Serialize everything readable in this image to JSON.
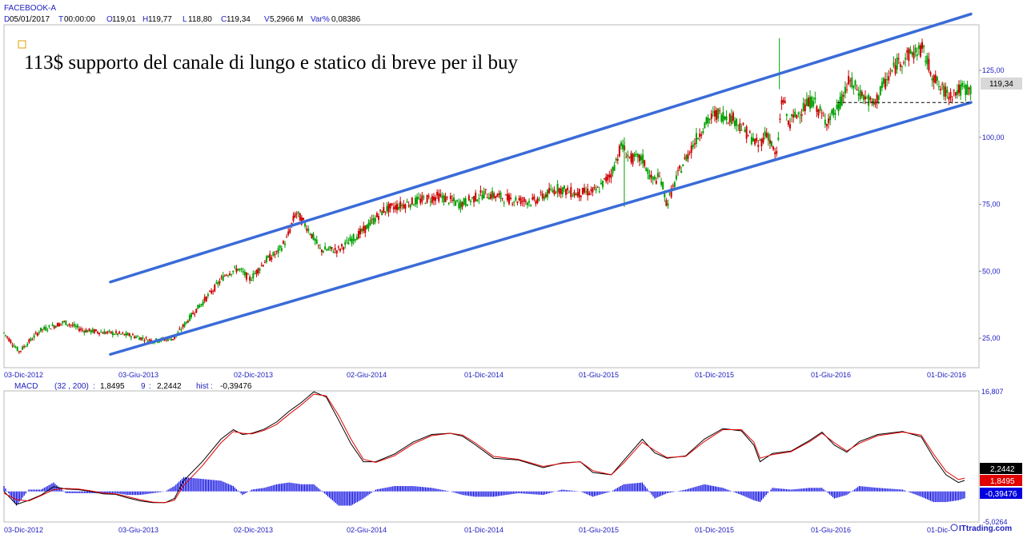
{
  "header": {
    "symbol": "FACEBOOK-A",
    "fields": [
      {
        "k": "D",
        "v": "05/01/2017"
      },
      {
        "k": "T",
        "v": "00:00:00"
      },
      {
        "k": "O",
        "v": "119,01"
      },
      {
        "k": "H",
        "v": "119,77"
      },
      {
        "k": "L",
        "v": "118,80"
      },
      {
        "k": "C",
        "v": "119,34"
      },
      {
        "k": "V",
        "v": "5,2966 M"
      },
      {
        "k": "Var%",
        "v": "0,08386"
      }
    ]
  },
  "annotation": "113$ supporto del canale di lungo e statico di breve per il buy",
  "colors": {
    "channel": "#3a6bd8",
    "bull": "#00a000",
    "bear": "#cc0000",
    "macd": "#000000",
    "signal": "#e00000",
    "hist": "#0000e0",
    "axis_text": "#2020c0",
    "grid": "#c8c8c8"
  },
  "chart_data": [
    {
      "type": "candlestick",
      "title": "FACEBOOK-A",
      "x_tick_labels": [
        "03-Dic-2012",
        "03-Giu-2013",
        "02-Dic-2013",
        "02-Giu-2014",
        "01-Dic-2014",
        "01-Giu-2015",
        "01-Dic-2015",
        "01-Giu-2016",
        "01-Dic-2016"
      ],
      "y_tick_labels": [
        "25,00",
        "50,00",
        "75,00",
        "100,00",
        "125,00"
      ],
      "y_ticks": [
        25,
        50,
        75,
        100,
        125
      ],
      "ylim": [
        14,
        142
      ],
      "last_price_label": "119,34",
      "last_price": 119.34,
      "price_path": [
        {
          "x": 0,
          "y": 27
        },
        {
          "x": 5,
          "y": 20
        },
        {
          "x": 12,
          "y": 28
        },
        {
          "x": 20,
          "y": 31
        },
        {
          "x": 26,
          "y": 28
        },
        {
          "x": 35,
          "y": 27
        },
        {
          "x": 42,
          "y": 26
        },
        {
          "x": 49,
          "y": 24
        },
        {
          "x": 56,
          "y": 25
        },
        {
          "x": 62,
          "y": 34
        },
        {
          "x": 68,
          "y": 42
        },
        {
          "x": 73,
          "y": 49
        },
        {
          "x": 77,
          "y": 51
        },
        {
          "x": 81,
          "y": 47
        },
        {
          "x": 86,
          "y": 54
        },
        {
          "x": 90,
          "y": 57
        },
        {
          "x": 93,
          "y": 62
        },
        {
          "x": 96,
          "y": 72
        },
        {
          "x": 100,
          "y": 66
        },
        {
          "x": 104,
          "y": 58
        },
        {
          "x": 110,
          "y": 58
        },
        {
          "x": 118,
          "y": 65
        },
        {
          "x": 125,
          "y": 73
        },
        {
          "x": 135,
          "y": 76
        },
        {
          "x": 143,
          "y": 78
        },
        {
          "x": 150,
          "y": 75
        },
        {
          "x": 158,
          "y": 79
        },
        {
          "x": 166,
          "y": 77
        },
        {
          "x": 174,
          "y": 76
        },
        {
          "x": 182,
          "y": 81
        },
        {
          "x": 188,
          "y": 79
        },
        {
          "x": 195,
          "y": 80
        },
        {
          "x": 200,
          "y": 87
        },
        {
          "x": 203,
          "y": 97
        },
        {
          "x": 206,
          "y": 92
        },
        {
          "x": 210,
          "y": 92
        },
        {
          "x": 213,
          "y": 84
        },
        {
          "x": 216,
          "y": 85
        },
        {
          "x": 218,
          "y": 75
        },
        {
          "x": 222,
          "y": 87
        },
        {
          "x": 226,
          "y": 96
        },
        {
          "x": 230,
          "y": 104
        },
        {
          "x": 234,
          "y": 109
        },
        {
          "x": 240,
          "y": 107
        },
        {
          "x": 244,
          "y": 102
        },
        {
          "x": 248,
          "y": 97
        },
        {
          "x": 251,
          "y": 102
        },
        {
          "x": 254,
          "y": 92
        },
        {
          "x": 256,
          "y": 116
        },
        {
          "x": 258,
          "y": 105
        },
        {
          "x": 262,
          "y": 110
        },
        {
          "x": 266,
          "y": 114
        },
        {
          "x": 270,
          "y": 106
        },
        {
          "x": 274,
          "y": 110
        },
        {
          "x": 278,
          "y": 121
        },
        {
          "x": 282,
          "y": 116
        },
        {
          "x": 286,
          "y": 112
        },
        {
          "x": 289,
          "y": 119
        },
        {
          "x": 294,
          "y": 128
        },
        {
          "x": 298,
          "y": 131
        },
        {
          "x": 302,
          "y": 133
        },
        {
          "x": 304,
          "y": 127
        },
        {
          "x": 306,
          "y": 122
        },
        {
          "x": 308,
          "y": 118
        },
        {
          "x": 311,
          "y": 116
        },
        {
          "x": 315,
          "y": 118
        },
        {
          "x": 318,
          "y": 118
        }
      ],
      "channel_lines": [
        {
          "from": {
            "x": 35,
            "y": 46
          },
          "to": {
            "x": 318,
            "y": 146
          }
        },
        {
          "from": {
            "x": 35,
            "y": 19
          },
          "to": {
            "x": 318,
            "y": 113
          }
        }
      ],
      "horizontal_level": {
        "y": 113,
        "from_x": 274,
        "to_x": 318,
        "style": "dashed"
      }
    },
    {
      "type": "line",
      "title": "MACD",
      "params": "(32 , 200)",
      "macd_value": "1,8495",
      "signal_period": "9",
      "signal_value": "2,2442",
      "hist_label": "hist",
      "hist_value": "-0,39476",
      "y_top_label": "16,807",
      "y_bottom_label": "-5,0264",
      "ylim": [
        -5.0264,
        16.807
      ],
      "x_tick_labels": [
        "03-Dic-2012",
        "03-Giu-2013",
        "02-Dic-2013",
        "02-Giu-2014",
        "01-Dic-2014",
        "01-Giu-2015",
        "01-Dic-2015",
        "01-Giu-2016",
        "01-Dic-"
      ],
      "value_labels": [
        "2,2442",
        "1,8495",
        "-0,39476"
      ],
      "macd": [
        {
          "x": 0,
          "y": 0
        },
        {
          "x": 4,
          "y": -2.2
        },
        {
          "x": 8,
          "y": -1.5
        },
        {
          "x": 12,
          "y": -0.6
        },
        {
          "x": 16,
          "y": 0.8
        },
        {
          "x": 20,
          "y": 0.4
        },
        {
          "x": 24,
          "y": 0.3
        },
        {
          "x": 28,
          "y": 0.0
        },
        {
          "x": 32,
          "y": -0.4
        },
        {
          "x": 36,
          "y": -0.5
        },
        {
          "x": 40,
          "y": -1.1
        },
        {
          "x": 44,
          "y": -1.6
        },
        {
          "x": 48,
          "y": -1.9
        },
        {
          "x": 52,
          "y": -1.9
        },
        {
          "x": 55,
          "y": -1.2
        },
        {
          "x": 58,
          "y": 1.8
        },
        {
          "x": 64,
          "y": 5.0
        },
        {
          "x": 70,
          "y": 8.8
        },
        {
          "x": 74,
          "y": 10.4
        },
        {
          "x": 77,
          "y": 9.6
        },
        {
          "x": 80,
          "y": 9.8
        },
        {
          "x": 84,
          "y": 10.5
        },
        {
          "x": 88,
          "y": 11.7
        },
        {
          "x": 92,
          "y": 13.5
        },
        {
          "x": 96,
          "y": 15.0
        },
        {
          "x": 100,
          "y": 16.8
        },
        {
          "x": 104,
          "y": 15.9
        },
        {
          "x": 108,
          "y": 12.0
        },
        {
          "x": 112,
          "y": 8.0
        },
        {
          "x": 116,
          "y": 5.0
        },
        {
          "x": 120,
          "y": 5.0
        },
        {
          "x": 126,
          "y": 6.3
        },
        {
          "x": 132,
          "y": 8.3
        },
        {
          "x": 138,
          "y": 9.6
        },
        {
          "x": 144,
          "y": 9.8
        },
        {
          "x": 148,
          "y": 9.3
        },
        {
          "x": 152,
          "y": 7.9
        },
        {
          "x": 158,
          "y": 5.6
        },
        {
          "x": 166,
          "y": 5.3
        },
        {
          "x": 174,
          "y": 4.0
        },
        {
          "x": 180,
          "y": 4.8
        },
        {
          "x": 186,
          "y": 5.0
        },
        {
          "x": 190,
          "y": 3.2
        },
        {
          "x": 196,
          "y": 2.8
        },
        {
          "x": 200,
          "y": 5.2
        },
        {
          "x": 206,
          "y": 8.8
        },
        {
          "x": 210,
          "y": 6.5
        },
        {
          "x": 214,
          "y": 5.6
        },
        {
          "x": 220,
          "y": 6.0
        },
        {
          "x": 226,
          "y": 8.8
        },
        {
          "x": 232,
          "y": 10.6
        },
        {
          "x": 238,
          "y": 10.2
        },
        {
          "x": 242,
          "y": 7.8
        },
        {
          "x": 244,
          "y": 5.0
        },
        {
          "x": 248,
          "y": 6.4
        },
        {
          "x": 254,
          "y": 6.8
        },
        {
          "x": 260,
          "y": 8.6
        },
        {
          "x": 264,
          "y": 10.0
        },
        {
          "x": 268,
          "y": 7.8
        },
        {
          "x": 272,
          "y": 6.6
        },
        {
          "x": 276,
          "y": 8.4
        },
        {
          "x": 282,
          "y": 9.6
        },
        {
          "x": 290,
          "y": 10.1
        },
        {
          "x": 296,
          "y": 9.2
        },
        {
          "x": 300,
          "y": 5.7
        },
        {
          "x": 304,
          "y": 2.8
        },
        {
          "x": 308,
          "y": 1.5
        },
        {
          "x": 310,
          "y": 1.85
        }
      ],
      "signal": [
        {
          "x": 0,
          "y": -0.3
        },
        {
          "x": 4,
          "y": -1.4
        },
        {
          "x": 8,
          "y": -1.6
        },
        {
          "x": 12,
          "y": -0.7
        },
        {
          "x": 16,
          "y": 0.3
        },
        {
          "x": 20,
          "y": 0.5
        },
        {
          "x": 24,
          "y": 0.4
        },
        {
          "x": 28,
          "y": 0.1
        },
        {
          "x": 32,
          "y": -0.3
        },
        {
          "x": 36,
          "y": -0.4
        },
        {
          "x": 40,
          "y": -0.9
        },
        {
          "x": 44,
          "y": -1.4
        },
        {
          "x": 48,
          "y": -1.8
        },
        {
          "x": 52,
          "y": -1.9
        },
        {
          "x": 55,
          "y": -1.5
        },
        {
          "x": 58,
          "y": 1.0
        },
        {
          "x": 64,
          "y": 4.3
        },
        {
          "x": 70,
          "y": 8.2
        },
        {
          "x": 74,
          "y": 10.1
        },
        {
          "x": 77,
          "y": 9.8
        },
        {
          "x": 80,
          "y": 9.7
        },
        {
          "x": 84,
          "y": 10.3
        },
        {
          "x": 88,
          "y": 11.3
        },
        {
          "x": 92,
          "y": 13.0
        },
        {
          "x": 96,
          "y": 14.6
        },
        {
          "x": 100,
          "y": 16.4
        },
        {
          "x": 104,
          "y": 16.1
        },
        {
          "x": 108,
          "y": 12.8
        },
        {
          "x": 112,
          "y": 8.8
        },
        {
          "x": 116,
          "y": 5.4
        },
        {
          "x": 120,
          "y": 4.9
        },
        {
          "x": 126,
          "y": 6.0
        },
        {
          "x": 132,
          "y": 8.0
        },
        {
          "x": 138,
          "y": 9.4
        },
        {
          "x": 144,
          "y": 9.8
        },
        {
          "x": 148,
          "y": 9.5
        },
        {
          "x": 152,
          "y": 8.2
        },
        {
          "x": 158,
          "y": 5.9
        },
        {
          "x": 166,
          "y": 5.4
        },
        {
          "x": 174,
          "y": 4.2
        },
        {
          "x": 180,
          "y": 4.7
        },
        {
          "x": 186,
          "y": 5.0
        },
        {
          "x": 190,
          "y": 3.5
        },
        {
          "x": 196,
          "y": 2.8
        },
        {
          "x": 200,
          "y": 4.8
        },
        {
          "x": 206,
          "y": 8.3
        },
        {
          "x": 210,
          "y": 6.9
        },
        {
          "x": 214,
          "y": 5.7
        },
        {
          "x": 220,
          "y": 5.9
        },
        {
          "x": 226,
          "y": 8.4
        },
        {
          "x": 232,
          "y": 10.4
        },
        {
          "x": 238,
          "y": 10.4
        },
        {
          "x": 242,
          "y": 8.3
        },
        {
          "x": 244,
          "y": 5.6
        },
        {
          "x": 248,
          "y": 6.2
        },
        {
          "x": 254,
          "y": 6.7
        },
        {
          "x": 260,
          "y": 8.4
        },
        {
          "x": 264,
          "y": 9.8
        },
        {
          "x": 268,
          "y": 8.2
        },
        {
          "x": 272,
          "y": 6.8
        },
        {
          "x": 276,
          "y": 8.1
        },
        {
          "x": 282,
          "y": 9.4
        },
        {
          "x": 290,
          "y": 10.0
        },
        {
          "x": 296,
          "y": 9.5
        },
        {
          "x": 300,
          "y": 6.3
        },
        {
          "x": 304,
          "y": 3.4
        },
        {
          "x": 308,
          "y": 2.0
        },
        {
          "x": 310,
          "y": 2.24
        }
      ]
    }
  ],
  "watermark": "ITtrading.com"
}
